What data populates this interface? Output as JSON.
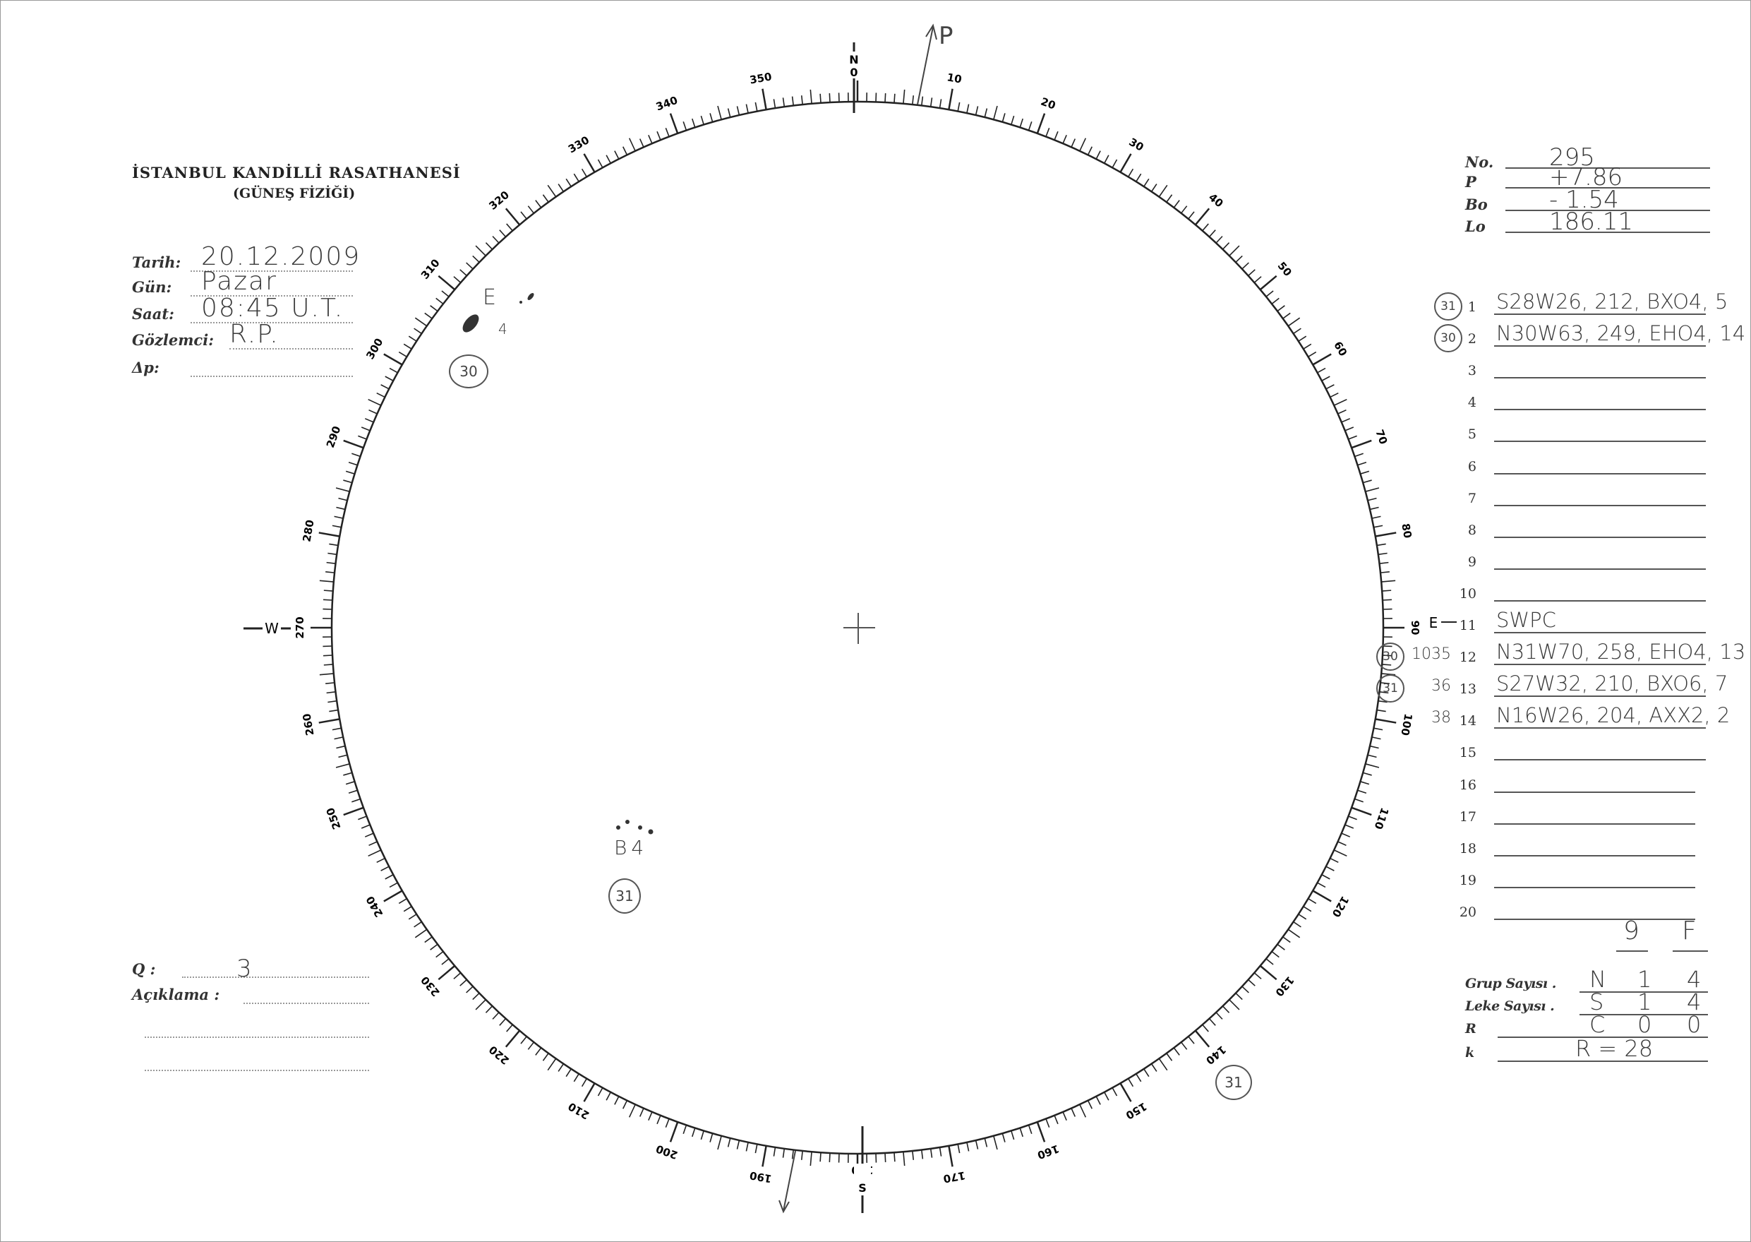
{
  "header": {
    "title": "İSTANBUL KANDİLLİ RASATHANESİ",
    "subtitle": "(GÜNEŞ FİZİĞİ)"
  },
  "observation": [
    {
      "label": "Tarih:",
      "value": "20.12.2009"
    },
    {
      "label": "Gün:",
      "value": "Pazar"
    },
    {
      "label": "Saat:",
      "value": "08:45 U.T."
    },
    {
      "label": "Gözlemci:",
      "value": "R.P."
    },
    {
      "label": "Δp:",
      "value": ""
    }
  ],
  "quality": {
    "q_label": "Q :",
    "q_value": "3",
    "note_label": "Açıklama :"
  },
  "ephemeris": [
    {
      "label": "No.",
      "value": "295"
    },
    {
      "label": "P",
      "value": "+7.86"
    },
    {
      "label": "Bo",
      "value": "- 1.54"
    },
    {
      "label": "Lo",
      "value": "186.11"
    }
  ],
  "groups": [
    {
      "num": "1",
      "code": "31",
      "prefix": "",
      "text": "S28W26, 212, BXO4, 5"
    },
    {
      "num": "2",
      "code": "30",
      "prefix": "",
      "text": "N30W63, 249, EHO4, 14"
    },
    {
      "num": "3",
      "code": "",
      "prefix": "",
      "text": ""
    },
    {
      "num": "4",
      "code": "",
      "prefix": "",
      "text": ""
    },
    {
      "num": "5",
      "code": "",
      "prefix": "",
      "text": ""
    },
    {
      "num": "6",
      "code": "",
      "prefix": "",
      "text": ""
    },
    {
      "num": "7",
      "code": "",
      "prefix": "",
      "text": ""
    },
    {
      "num": "8",
      "code": "",
      "prefix": "",
      "text": ""
    },
    {
      "num": "9",
      "code": "",
      "prefix": "",
      "text": ""
    },
    {
      "num": "10",
      "code": "",
      "prefix": "",
      "text": ""
    },
    {
      "num": "11",
      "code": "",
      "prefix": "",
      "text": "SWPC"
    },
    {
      "num": "12",
      "code": "30",
      "prefix": "1035",
      "text": "N31W70, 258, EHO4, 13"
    },
    {
      "num": "13",
      "code": "31",
      "prefix": "36",
      "text": "S27W32, 210, BXO6, 7"
    },
    {
      "num": "14",
      "code": "",
      "prefix": "38",
      "text": "N16W26, 204, AXX2, 2"
    },
    {
      "num": "15",
      "code": "",
      "prefix": "",
      "text": ""
    },
    {
      "num": "16",
      "code": "",
      "prefix": "",
      "text": ""
    },
    {
      "num": "17",
      "code": "",
      "prefix": "",
      "text": ""
    },
    {
      "num": "18",
      "code": "",
      "prefix": "",
      "text": ""
    },
    {
      "num": "19",
      "code": "",
      "prefix": "",
      "text": ""
    },
    {
      "num": "20",
      "code": "",
      "prefix": "",
      "text": ""
    }
  ],
  "summary": {
    "col_headers": [
      "9",
      "F"
    ],
    "rows": [
      {
        "label": "Grup Sayısı .",
        "values": [
          "N",
          "1",
          "4"
        ]
      },
      {
        "label": "Leke Sayısı .",
        "values": [
          "S",
          "1",
          "4"
        ]
      },
      {
        "label": "R",
        "values": [
          "C",
          "0",
          "0"
        ]
      },
      {
        "label": "k",
        "values": [
          "R = 28",
          "",
          ""
        ]
      }
    ]
  },
  "disk": {
    "cardinal": {
      "north": "N",
      "north_zero": "0",
      "east": "E",
      "south": "S",
      "west": "W"
    },
    "pole_label": "P",
    "degree_labels": [
      "0",
      "10",
      "20",
      "30",
      "40",
      "50",
      "60",
      "70",
      "80",
      "90",
      "100",
      "110",
      "120",
      "130",
      "140",
      "150",
      "160",
      "170",
      "180",
      "190",
      "200",
      "210",
      "220",
      "230",
      "240",
      "250",
      "260",
      "270",
      "280",
      "290",
      "300",
      "310",
      "320",
      "330",
      "340",
      "350"
    ],
    "spots": [
      {
        "type": "E",
        "count": "4",
        "group": "30"
      },
      {
        "type": "B",
        "count": "4",
        "group": "31"
      }
    ],
    "extra_circle": "31"
  },
  "colors": {
    "ink": "#222222",
    "pencil": "#3a3a3a"
  }
}
